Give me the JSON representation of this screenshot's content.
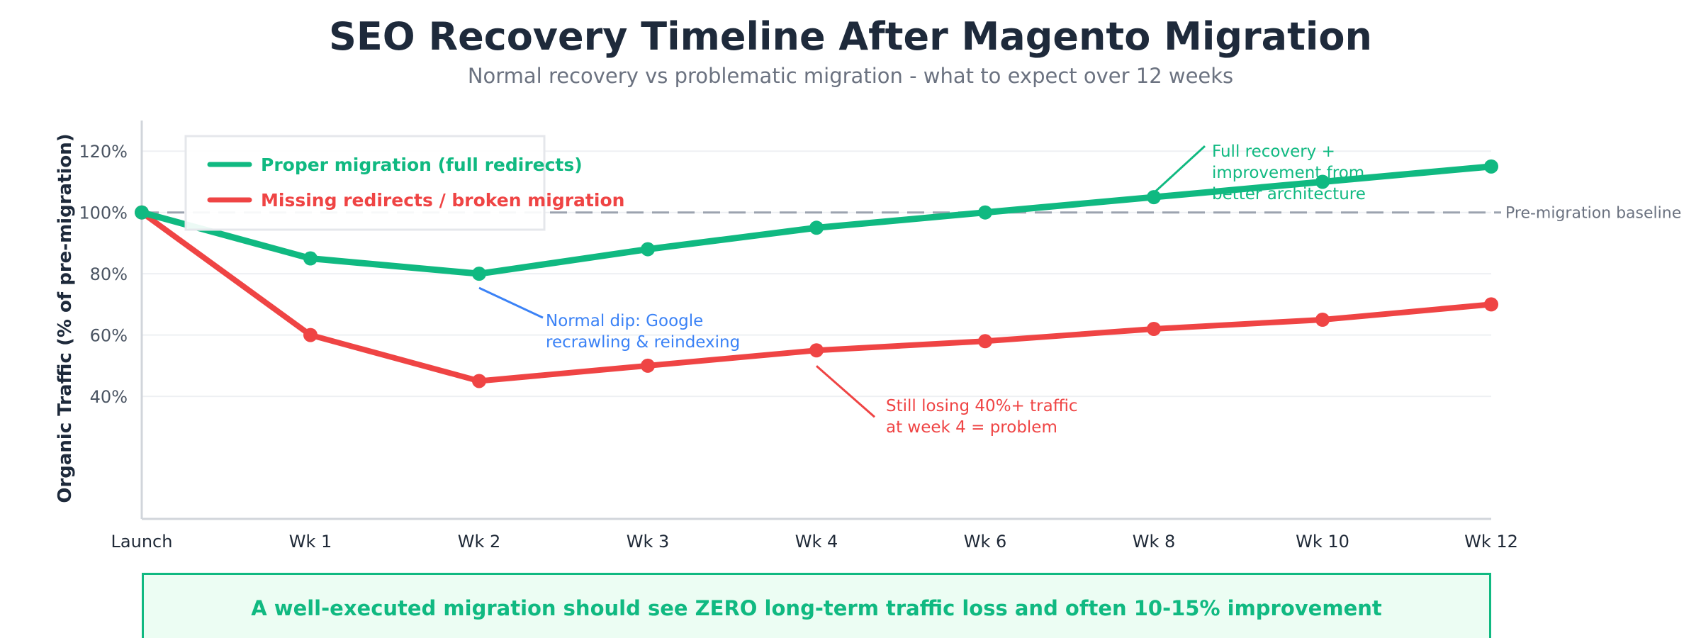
{
  "chart_data": {
    "type": "line",
    "title": "SEO Recovery Timeline After Magento Migration",
    "subtitle": "Normal recovery vs problematic migration - what to expect over 12 weeks",
    "ylabel": "Organic Traffic (% of pre-migration)",
    "xlabel": "",
    "categories": [
      "Launch",
      "Wk 1",
      "Wk 2",
      "Wk 3",
      "Wk 4",
      "Wk 6",
      "Wk 8",
      "Wk 10",
      "Wk 12"
    ],
    "ylim": [
      0,
      130
    ],
    "yticks": [
      40,
      60,
      80,
      100,
      120
    ],
    "ytick_labels": [
      "40%",
      "60%",
      "80%",
      "100%",
      "120%"
    ],
    "grid": true,
    "legend_position": "top-left",
    "series": [
      {
        "name": "Proper migration (full redirects)",
        "color": "#10b981",
        "values": [
          100,
          85,
          80,
          88,
          95,
          100,
          105,
          110,
          115
        ]
      },
      {
        "name": "Missing redirects / broken migration",
        "color": "#ef4444",
        "values": [
          100,
          60,
          45,
          50,
          55,
          58,
          62,
          65,
          70
        ]
      }
    ],
    "baseline": {
      "value": 100,
      "label": "Pre-migration baseline",
      "color": "#9ca3af"
    },
    "annotations": [
      {
        "text": [
          "Normal dip: Google",
          "recrawling & reindexing"
        ],
        "x": "Wk 2",
        "y": 80,
        "color": "#3b82f6"
      },
      {
        "text": [
          "Still losing 40%+ traffic",
          "at week 4 = problem"
        ],
        "x": "Wk 4",
        "y": 55,
        "color": "#ef4444"
      },
      {
        "text": [
          "Full recovery +",
          "improvement from",
          "better architecture"
        ],
        "x": "Wk 8",
        "y": 105,
        "color": "#10b981"
      }
    ],
    "callout": "A well-executed migration should see ZERO long-term traffic loss and often 10-15% improvement"
  }
}
